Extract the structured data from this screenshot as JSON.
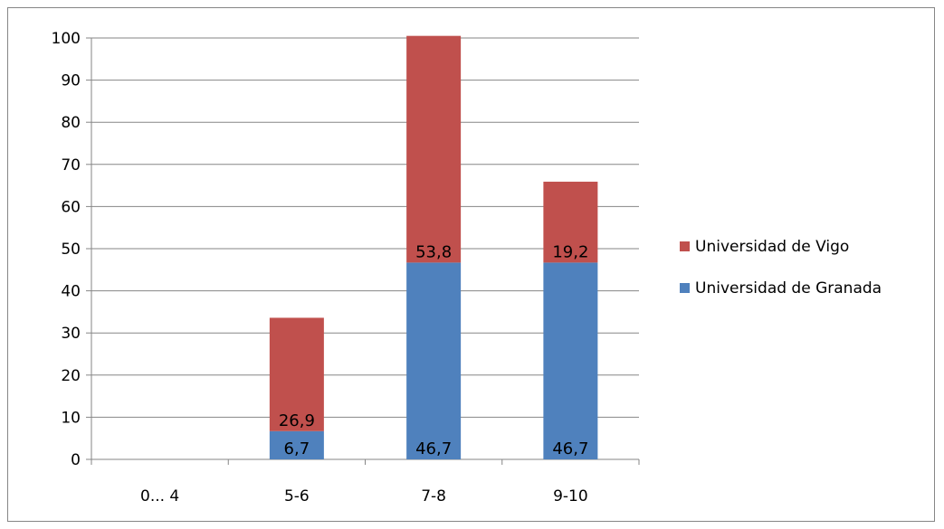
{
  "chart_data": {
    "type": "bar",
    "stacked": true,
    "categories": [
      "0... 4",
      "5-6",
      "7-8",
      "9-10"
    ],
    "series": [
      {
        "name": "Universidad de Granada",
        "values": [
          0,
          6.7,
          46.7,
          46.7
        ],
        "labels": [
          "",
          "6,7",
          "46,7",
          "46,7"
        ],
        "color": "#4f81bd"
      },
      {
        "name": "Universidad de Vigo",
        "values": [
          0,
          26.9,
          53.8,
          19.2
        ],
        "labels": [
          "",
          "26,9",
          "53,8",
          "19,2"
        ],
        "color": "#c0504d"
      }
    ],
    "ylim": [
      0,
      100
    ],
    "yticks": [
      0,
      10,
      20,
      30,
      40,
      50,
      60,
      70,
      80,
      90,
      100
    ],
    "grid": true,
    "legend_position": "right",
    "title": "",
    "xlabel": "",
    "ylabel": ""
  }
}
